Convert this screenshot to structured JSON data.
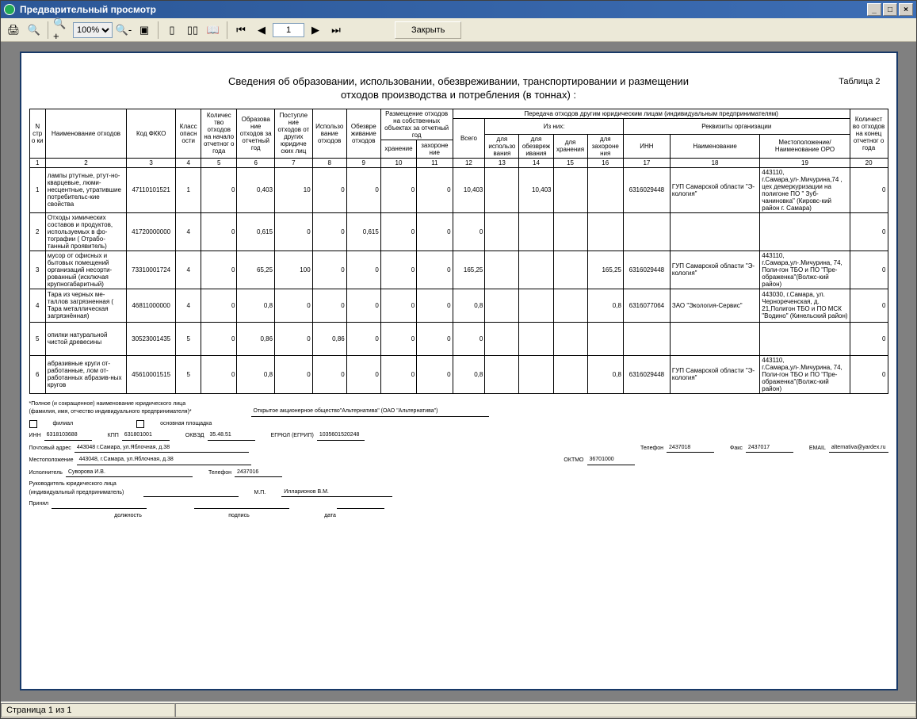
{
  "window": {
    "title": "Предварительный просмотр",
    "min": "_",
    "max": "□",
    "close": "×"
  },
  "toolbar": {
    "zoom_value": "100%",
    "page_value": "1",
    "close_label": "Закрыть"
  },
  "statusbar": {
    "page_label": "Страница 1 из 1"
  },
  "report": {
    "title_line1": "Сведения об образовании, использовании, обезвреживании, транспортировании и размещении",
    "title_line2": "отходов производства и потребления (в тоннах) :",
    "table_label": "Таблица 2",
    "headers": {
      "h1": "N стро ки",
      "h2": "Наименование отходов",
      "h3": "Код ФККО",
      "h4": "Класс опасн ости",
      "h5": "Количес тво отходов на начало отчетног о года",
      "h6": "Образова ние отходов за отчетный год",
      "h7": "Поступле ние отходов от других юридиче ских лиц",
      "h8": "Использо вание отходов",
      "h9": "Обезвре живание отходов",
      "h10_top": "Размещение отходов на собственных объектах за отчетный год",
      "h10a": "хранение",
      "h10b": "захороне ние",
      "h11_top": "Передача отходов другим юридическим лицам (индивидуальным предпринимателям)",
      "h12": "Всего",
      "h_izn": "Из них:",
      "h13": "для использо вания",
      "h14": "для обезвреж ивания",
      "h15": "для хранения",
      "h16": "для захороне ния",
      "h_rekv": "Реквизиты организации",
      "h17": "ИНН",
      "h18": "Наименование",
      "h19": "Местоположение/ Наименование ОРО",
      "h20": "Количест во отходов на конец отчетног о года"
    },
    "num_row": [
      "1",
      "2",
      "3",
      "4",
      "5",
      "6",
      "7",
      "8",
      "9",
      "10",
      "11",
      "12",
      "13",
      "14",
      "15",
      "16",
      "17",
      "18",
      "19",
      "20"
    ],
    "rows": [
      {
        "n": "1",
        "name": "лампы ртутные, ртут-но-кварцевые, люми-несцентные, утратившие потребительс-кие свойства",
        "code": "47110101521",
        "cls": "1",
        "c5": "0",
        "c6": "0,403",
        "c7": "10",
        "c8": "0",
        "c9": "0",
        "c10": "0",
        "c11": "0",
        "c12": "10,403",
        "c13": "",
        "c14": "10,403",
        "c15": "",
        "c16": "",
        "c17": "6316029448",
        "c18": "ГУП Самарской области \"Э-кология\"",
        "c19": "443110, г.Самара,ул-.Мичурина,74 , цех демеркуризации на полигоне ПО \" Зуб-чаниновка\" (Кировс-кий район г. Самара)",
        "c20": "0"
      },
      {
        "n": "2",
        "name": "Отходы химических составов и продуктов, используемых в фо-тографии ( Отрабо-танный проявитель)",
        "code": "41720000000",
        "cls": "4",
        "c5": "0",
        "c6": "0,615",
        "c7": "0",
        "c8": "0",
        "c9": "0,615",
        "c10": "0",
        "c11": "0",
        "c12": "0",
        "c13": "",
        "c14": "",
        "c15": "",
        "c16": "",
        "c17": "",
        "c18": "",
        "c19": "",
        "c20": "0"
      },
      {
        "n": "3",
        "name": "мусор от офисных и бытовых помещений организаций несорти-рованный (исключая крупногабаритный)",
        "code": "73310001724",
        "cls": "4",
        "c5": "0",
        "c6": "65,25",
        "c7": "100",
        "c8": "0",
        "c9": "0",
        "c10": "0",
        "c11": "0",
        "c12": "165,25",
        "c13": "",
        "c14": "",
        "c15": "",
        "c16": "165,25",
        "c17": "6316029448",
        "c18": "ГУП Самарской области \"Э-кология\"",
        "c19": "443110, г.Самара,ул-.Мичурина, 74, Поли-гон ТБО и ПО \"Пре-ображенка\"(Волжс-кий район)",
        "c20": "0"
      },
      {
        "n": "4",
        "name": "Тара из черных ме-таллов загрязненная ( Тара металлическая загрязнённая)",
        "code": "46811000000",
        "cls": "4",
        "c5": "0",
        "c6": "0,8",
        "c7": "0",
        "c8": "0",
        "c9": "0",
        "c10": "0",
        "c11": "0",
        "c12": "0,8",
        "c13": "",
        "c14": "",
        "c15": "",
        "c16": "0,8",
        "c17": "6316077064",
        "c18": "ЗАО \"Экология-Сервис\"",
        "c19": "443030, г.Самара, ул. Чернореченская, д. 21,Полигон ТБО и ПО МСК \"Водино\" (Кинельский район)",
        "c20": "0"
      },
      {
        "n": "5",
        "name": "опилки натуральной чистой древесины",
        "code": "30523001435",
        "cls": "5",
        "c5": "0",
        "c6": "0,86",
        "c7": "0",
        "c8": "0,86",
        "c9": "0",
        "c10": "0",
        "c11": "0",
        "c12": "0",
        "c13": "",
        "c14": "",
        "c15": "",
        "c16": "",
        "c17": "",
        "c18": "",
        "c19": "",
        "c20": "0"
      },
      {
        "n": "6",
        "name": "абразивные круги от-работанные, лом от-работанных абразив-ных кругов",
        "code": "45610001515",
        "cls": "5",
        "c5": "0",
        "c6": "0,8",
        "c7": "0",
        "c8": "0",
        "c9": "0",
        "c10": "0",
        "c11": "0",
        "c12": "0,8",
        "c13": "",
        "c14": "",
        "c15": "",
        "c16": "0,8",
        "c17": "6316029448",
        "c18": "ГУП Самарской области \"Э-кология\"",
        "c19": "443110, г.Самара,ул-.Мичурина, 74, Поли-гон ТБО и ПО \"Пре-ображенка\"(Волжс-кий район)",
        "c20": "0"
      }
    ],
    "footer": {
      "note1": "*Полное (и сокращенное) наименование юридического лица",
      "note2": "(фамилия, имя, отчество индивидуального предпринимателя)*",
      "org_full": "Открытое акционерное общество\"Альтернатива\" (ОАО \"Альтернатива\")",
      "filial": "филиал",
      "osn": "основная площадка",
      "inn_lbl": "ИНН",
      "inn": "6318103688",
      "kpp_lbl": "КПП",
      "kpp": "631801001",
      "okved_lbl": "ОКВЭД",
      "okved": "35.48.51",
      "egr_lbl": "ЕГРЮЛ (ЕГРИП)",
      "egr": "1035601520248",
      "addr_lbl": "Почтовый адрес",
      "addr": "443048    г.Самара, ул.Яблочная, д.38",
      "tel_lbl": "Телефон",
      "tel": "2437018",
      "fax_lbl": "Факс",
      "fax": "2437017",
      "email_lbl": "EMAIL",
      "email": "alternativa@yardex.ru",
      "loc_lbl": "Местоположение",
      "loc": "443048, г.Самара, ул.Яблочная, д.38",
      "oktmo_lbl": "ОКТМО",
      "oktmo": "36701000",
      "exec_lbl": "Исполнитель",
      "exec": "Суворова И.В.",
      "tel2_lbl": "Телефон",
      "tel2": "2437016",
      "head_lbl": "Руководитель юридического лица (индивидуальный предприниматель)",
      "head": "Илларионов В.М.",
      "mp": "М.П.",
      "accept": "Принял",
      "dolzh": "должность",
      "sign": "подпись",
      "date": "дата"
    }
  }
}
